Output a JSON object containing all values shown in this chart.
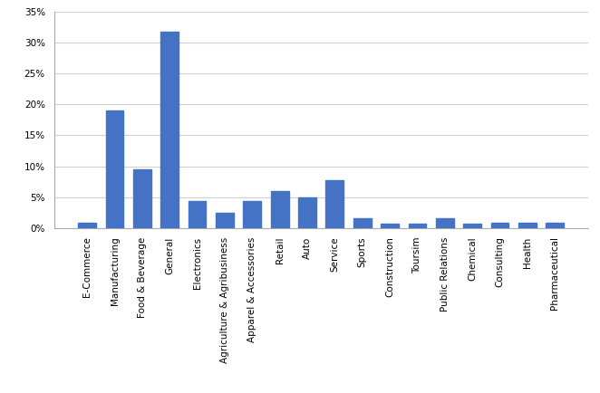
{
  "categories": [
    "E-Commerce",
    "Manufacturing",
    "Food & Beverage",
    "General",
    "Electronics",
    "Agriculture & Agribusiness",
    "Apparel & Accessories",
    "Retail",
    "Auto",
    "Service",
    "Sports",
    "Construction",
    "Toursim",
    "Public Relations",
    "Chemical",
    "Consulting",
    "Health",
    "Pharmaceutical"
  ],
  "values": [
    0.008,
    0.19,
    0.095,
    0.318,
    0.043,
    0.025,
    0.043,
    0.06,
    0.05,
    0.077,
    0.016,
    0.007,
    0.007,
    0.016,
    0.007,
    0.008,
    0.008,
    0.009
  ],
  "bar_color": "#4472C4",
  "ylim": [
    0,
    0.35
  ],
  "yticks": [
    0.0,
    0.05,
    0.1,
    0.15,
    0.2,
    0.25,
    0.3,
    0.35
  ],
  "background_color": "#ffffff",
  "grid_color": "#d0d0d0",
  "tick_label_fontsize": 7.5,
  "bar_width": 0.65
}
